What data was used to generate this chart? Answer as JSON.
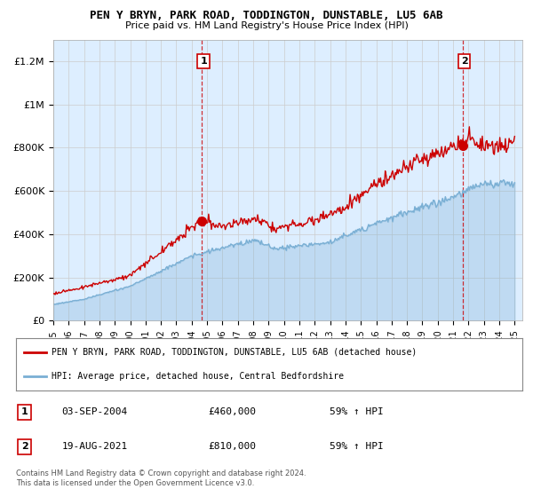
{
  "title": "PEN Y BRYN, PARK ROAD, TODDINGTON, DUNSTABLE, LU5 6AB",
  "subtitle": "Price paid vs. HM Land Registry's House Price Index (HPI)",
  "ylim": [
    0,
    1300000
  ],
  "yticks": [
    0,
    200000,
    400000,
    600000,
    800000,
    1000000,
    1200000
  ],
  "ytick_labels": [
    "£0",
    "£200K",
    "£400K",
    "£600K",
    "£800K",
    "£1M",
    "£1.2M"
  ],
  "x_start_year": 1995,
  "x_end_year": 2025,
  "house_color": "#cc0000",
  "hpi_color": "#7aafd4",
  "hpi_fill_color": "#ddeeff",
  "sale1_year": 2004.67,
  "sale1_price": 460000,
  "sale2_year": 2021.63,
  "sale2_price": 810000,
  "legend_house": "PEN Y BRYN, PARK ROAD, TODDINGTON, DUNSTABLE, LU5 6AB (detached house)",
  "legend_hpi": "HPI: Average price, detached house, Central Bedfordshire",
  "annotation1_label": "1",
  "annotation1_text": "03-SEP-2004",
  "annotation1_price": "£460,000",
  "annotation1_hpi": "59% ↑ HPI",
  "annotation2_label": "2",
  "annotation2_text": "19-AUG-2021",
  "annotation2_price": "£810,000",
  "annotation2_hpi": "59% ↑ HPI",
  "footer": "Contains HM Land Registry data © Crown copyright and database right 2024.\nThis data is licensed under the Open Government Licence v3.0.",
  "background_color": "#ffffff"
}
